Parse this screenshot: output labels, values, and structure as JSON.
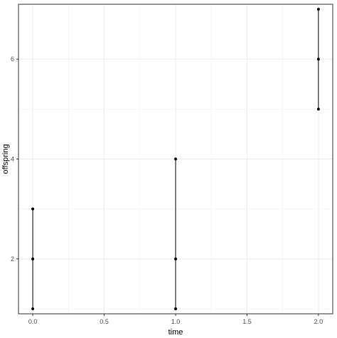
{
  "chart_data": {
    "type": "scatter",
    "title": "",
    "xlabel": "time",
    "ylabel": "offspring",
    "xlim": [
      -0.1,
      2.1
    ],
    "ylim": [
      0.9,
      7.1
    ],
    "x_ticks": [
      0.0,
      0.5,
      1.0,
      1.5,
      2.0
    ],
    "x_tick_labels": [
      "0.0",
      "0.5",
      "1.0",
      "1.5",
      "2.0"
    ],
    "y_ticks": [
      2,
      4,
      6
    ],
    "y_tick_labels": [
      "2",
      "4",
      "6"
    ],
    "grid": true,
    "points": [
      {
        "x": 0,
        "y": 1
      },
      {
        "x": 0,
        "y": 2
      },
      {
        "x": 0,
        "y": 3
      },
      {
        "x": 1,
        "y": 1
      },
      {
        "x": 1,
        "y": 2
      },
      {
        "x": 1,
        "y": 4
      },
      {
        "x": 2,
        "y": 5
      },
      {
        "x": 2,
        "y": 6
      },
      {
        "x": 2,
        "y": 7
      }
    ],
    "ranges": [
      {
        "x": 0,
        "ymin": 1,
        "ymax": 3
      },
      {
        "x": 1,
        "ymin": 1,
        "ymax": 4
      },
      {
        "x": 2,
        "ymin": 5,
        "ymax": 7
      }
    ],
    "colors": {
      "background": "#ffffff",
      "grid": "#ebebeb",
      "panel_border": "#333333",
      "marks": "#000000"
    }
  }
}
